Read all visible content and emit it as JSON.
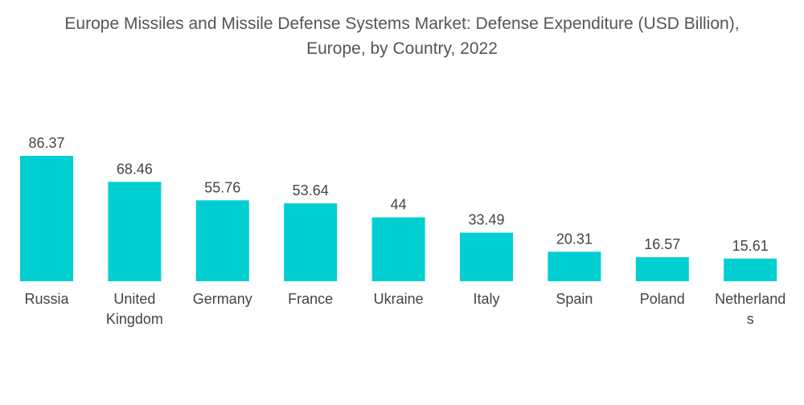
{
  "chart_data": {
    "type": "bar",
    "title_lines": [
      "Europe Missiles and Missile Defense Systems Market: Defense Expenditure (USD Billion),",
      "Europe, by Country, 2022"
    ],
    "categories": [
      [
        "Russia"
      ],
      [
        "United",
        "Kingdom"
      ],
      [
        "Germany"
      ],
      [
        "France"
      ],
      [
        "Ukraine"
      ],
      [
        "Italy"
      ],
      [
        "Spain"
      ],
      [
        "Poland"
      ],
      [
        "Netherland",
        "s"
      ]
    ],
    "values": [
      86.37,
      68.46,
      55.76,
      53.64,
      44,
      33.49,
      20.31,
      16.57,
      15.61
    ],
    "value_labels": [
      "86.37",
      "68.46",
      "55.76",
      "53.64",
      "44",
      "33.49",
      "20.31",
      "16.57",
      "15.61"
    ],
    "xlabel": "",
    "ylabel": "",
    "ylim": [
      0,
      86.37
    ],
    "grid": false,
    "legend": "none",
    "bar_color": "#00CED1"
  }
}
